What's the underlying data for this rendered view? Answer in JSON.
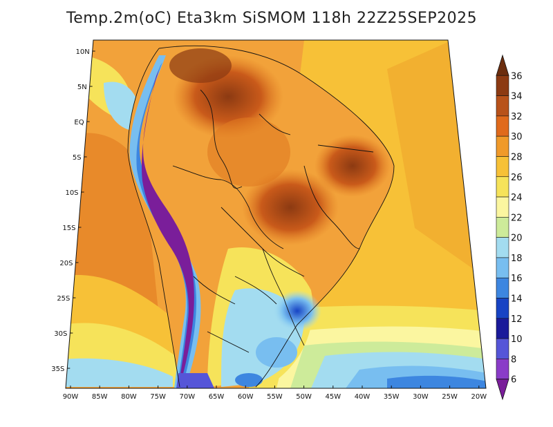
{
  "title": "Temp.2m(oC) Eta3km SiSMOM 118h 22Z25SEP2025",
  "lat_labels": [
    "10N",
    "5N",
    "EQ",
    "5S",
    "10S",
    "15S",
    "20S",
    "25S",
    "30S",
    "35S"
  ],
  "lon_labels": [
    "90W",
    "85W",
    "80W",
    "75W",
    "70W",
    "65W",
    "60W",
    "55W",
    "50W",
    "45W",
    "40W",
    "35W",
    "30W",
    "25W",
    "20W"
  ],
  "colorbar": {
    "labels": [
      "36",
      "34",
      "32",
      "30",
      "28",
      "26",
      "24",
      "22",
      "20",
      "18",
      "16",
      "14",
      "12",
      "10",
      "8",
      "6"
    ],
    "colors": [
      "#6b2d0e",
      "#8c3a12",
      "#b8521a",
      "#e06a1c",
      "#f09a2a",
      "#f7c137",
      "#f6e35a",
      "#fbf6a0",
      "#cdeb9a",
      "#a3dcf0",
      "#78bef0",
      "#3d86e0",
      "#1743c4",
      "#1a1a9a",
      "#5555d8",
      "#8a3cc8",
      "#7a1e9a"
    ]
  }
}
